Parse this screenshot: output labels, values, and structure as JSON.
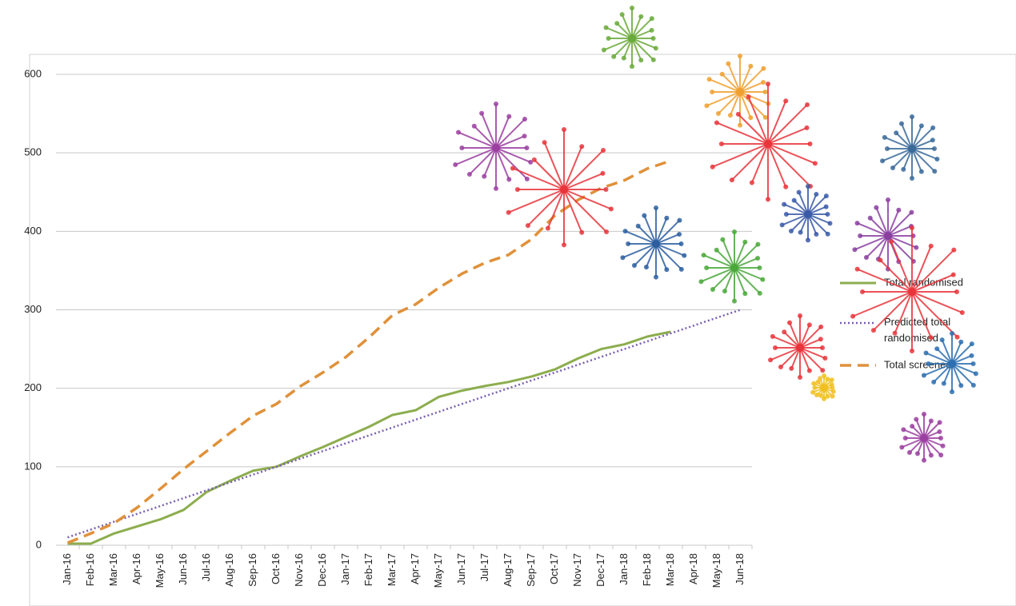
{
  "chart_data": {
    "type": "line",
    "categories": [
      "Jan-16",
      "Feb-16",
      "Mar-16",
      "Apr-16",
      "May-16",
      "Jun-16",
      "Jul-16",
      "Aug-16",
      "Sep-16",
      "Oct-16",
      "Nov-16",
      "Dec-16",
      "Jan-17",
      "Feb-17",
      "Mar-17",
      "Apr-17",
      "May-17",
      "Jun-17",
      "Jul-17",
      "Aug-17",
      "Sep-17",
      "Oct-17",
      "Nov-17",
      "Dec-17",
      "Jan-18",
      "Feb-18",
      "Mar-18",
      "Apr-18",
      "May-18",
      "Jun-18"
    ],
    "series": [
      {
        "name": "Total randomised",
        "color": "#8cad4e",
        "style": "solid",
        "values": [
          2,
          2,
          15,
          24,
          33,
          45,
          68,
          82,
          95,
          100,
          113,
          125,
          138,
          151,
          166,
          172,
          189,
          197,
          203,
          208,
          215,
          224,
          238,
          250,
          256,
          266,
          272,
          null,
          null,
          null
        ]
      },
      {
        "name": "Predicted total randomised",
        "color": "#7a5fb0",
        "style": "dotted",
        "values": [
          10,
          20,
          30,
          40,
          50,
          60,
          70,
          80,
          90,
          100,
          110,
          120,
          130,
          140,
          150,
          160,
          170,
          180,
          190,
          200,
          210,
          220,
          230,
          240,
          250,
          260,
          270,
          280,
          290,
          300
        ]
      },
      {
        "name": "Total screened",
        "color": "#e0913a",
        "style": "dashed",
        "values": [
          3,
          15,
          28,
          48,
          72,
          97,
          120,
          143,
          165,
          180,
          202,
          220,
          240,
          265,
          293,
          307,
          328,
          346,
          360,
          370,
          390,
          420,
          440,
          455,
          465,
          480,
          490,
          null,
          null,
          null
        ]
      }
    ],
    "ylim": [
      0,
      600
    ],
    "yticks": [
      0,
      100,
      200,
      300,
      400,
      500,
      600
    ],
    "grid": true,
    "legend": "right"
  }
}
